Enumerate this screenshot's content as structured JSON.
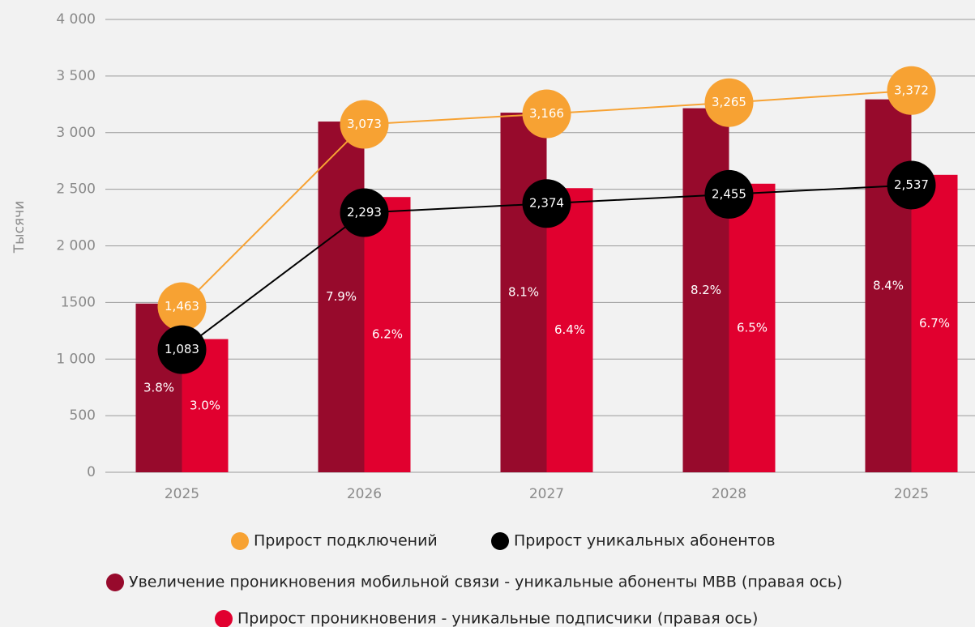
{
  "chart_data": {
    "type": "bar",
    "y_label": "Тысячи",
    "categories": [
      "2025",
      "2026",
      "2027",
      "2028",
      "2025"
    ],
    "ylim": [
      0,
      4000
    ],
    "yticks": [
      0,
      500,
      {
        "value": 1000,
        "label": "1 000"
      },
      1500,
      {
        "value": 2000,
        "label": "2 000"
      },
      {
        "value": 2500,
        "label": "2 500"
      },
      {
        "value": 3000,
        "label": "3 000"
      },
      {
        "value": 3500,
        "label": "3 500"
      },
      {
        "value": 4000,
        "label": "4 000"
      }
    ],
    "y2lim": [
      0,
      10.2
    ],
    "grid": true,
    "series": [
      {
        "name": "Увеличение проникновения мобильной связи - уникальные абоненты MBB (правая ось)",
        "type": "bar",
        "axis": "y2",
        "color": "#970a2c",
        "values": [
          3.8,
          7.9,
          8.1,
          8.2,
          8.4
        ],
        "value_labels": [
          "3.8%",
          "7.9%",
          "8.1%",
          "8.2%",
          "8.4%"
        ]
      },
      {
        "name": "Прирост проникновения - уникальные подписчики (правая ось)",
        "type": "bar",
        "axis": "y2",
        "color": "#e1002f",
        "values": [
          3.0,
          6.2,
          6.4,
          6.5,
          6.7
        ],
        "value_labels": [
          "3.0%",
          "6.2%",
          "6.4%",
          "6.5%",
          "6.7%"
        ]
      },
      {
        "name": "Прирост подключений",
        "type": "line",
        "color": "#f7a233",
        "values": [
          1463,
          3073,
          3166,
          3265,
          3372
        ],
        "value_labels": [
          "1,463",
          "3,073",
          "3,166",
          "3,265",
          "3,372"
        ]
      },
      {
        "name": "Прирост уникальных абонентов",
        "type": "line",
        "color": "#000000",
        "values": [
          1083,
          2293,
          2374,
          2455,
          2537
        ],
        "value_labels": [
          "1,083",
          "2,293",
          "2,374",
          "2,455",
          "2,537"
        ]
      }
    ]
  }
}
